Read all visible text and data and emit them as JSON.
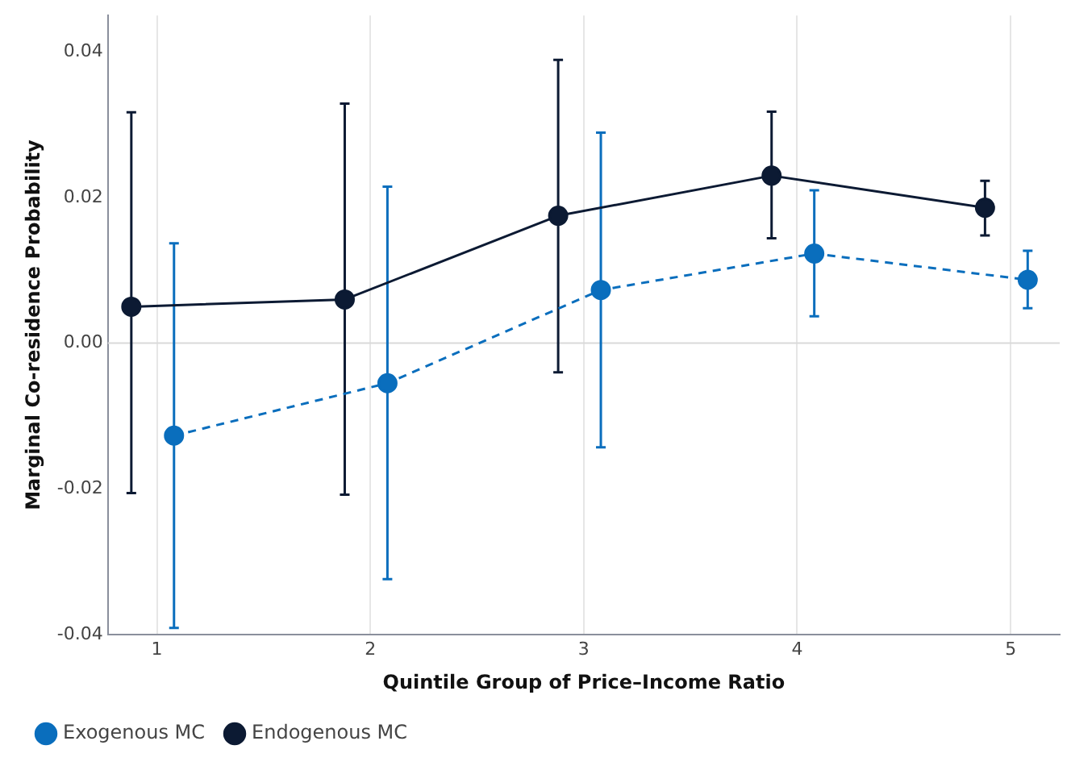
{
  "chart_data": {
    "type": "line",
    "xlabel": "Quintile Group of Price–Income Ratio",
    "ylabel": "Marginal Co-residence Probability",
    "xlim": [
      0.77,
      5.23
    ],
    "xticks": [
      1,
      2,
      3,
      4,
      5
    ],
    "ylim": [
      -0.04,
      0.045
    ],
    "yticks": [
      {
        "value": -0.04,
        "label": "-0.04"
      },
      {
        "value": -0.02,
        "label": "-0.02"
      },
      {
        "value": 0,
        "label": "0.00"
      },
      {
        "value": 0.02,
        "label": "0.02"
      },
      {
        "value": 0.04,
        "label": "0.04"
      }
    ],
    "grid": "x",
    "legend": "bottom left",
    "marker": "circle",
    "ref_lines": [
      {
        "axis": "y",
        "value": 0,
        "color": "#d9d9d9"
      }
    ],
    "series": [
      {
        "name": "Exogenous MC",
        "color": "#0a6ebd",
        "line_style": "dashed",
        "x": [
          1.08,
          2.08,
          3.08,
          4.08,
          5.08
        ],
        "values": [
          -0.0127,
          -0.0055,
          0.0073,
          0.0123,
          0.0087
        ],
        "errors": [
          [
            -0.0391,
            0.0137
          ],
          [
            -0.0324,
            0.0215
          ],
          [
            -0.0143,
            0.0289
          ],
          [
            0.0037,
            0.021
          ],
          [
            0.0048,
            0.0127
          ]
        ]
      },
      {
        "name": "Endogenous MC",
        "color": "#0c1a33",
        "line_style": "solid",
        "x": [
          0.88,
          1.88,
          2.88,
          3.88,
          4.88
        ],
        "values": [
          0.005,
          0.006,
          0.0175,
          0.023,
          0.0186
        ],
        "errors": [
          [
            -0.0206,
            0.0317
          ],
          [
            -0.0208,
            0.0329
          ],
          [
            -0.004,
            0.0389
          ],
          [
            0.0144,
            0.0318
          ],
          [
            0.0148,
            0.0223
          ]
        ]
      }
    ]
  }
}
